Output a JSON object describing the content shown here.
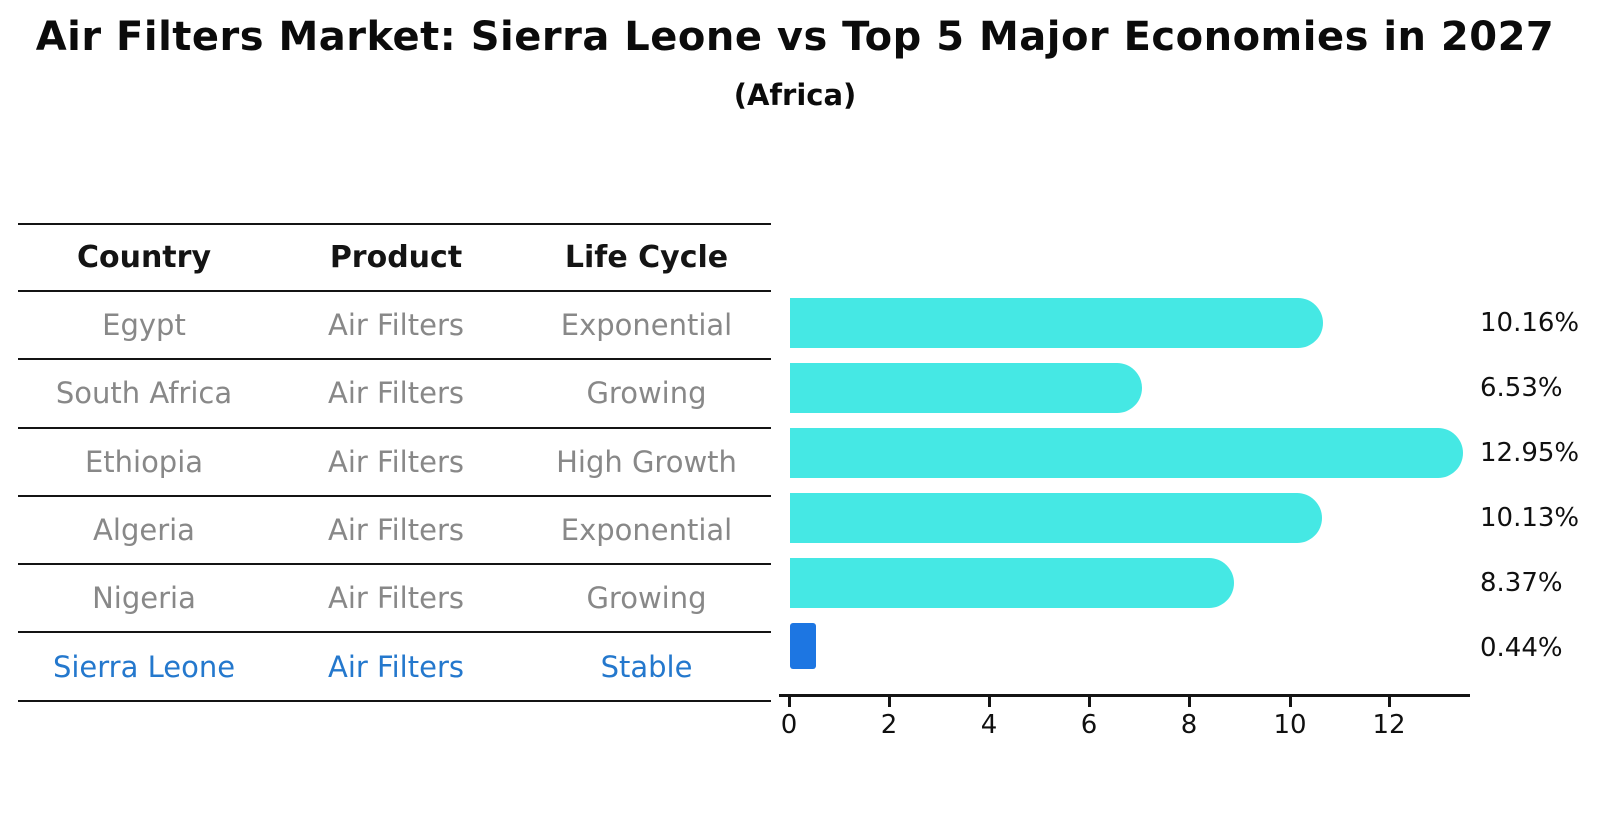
{
  "title": "Air Filters Market: Sierra Leone vs Top 5 Major Economies in 2027",
  "subtitle": "(Africa)",
  "table": {
    "headers": [
      "Country",
      "Product",
      "Life Cycle"
    ],
    "rows": [
      {
        "country": "Egypt",
        "product": "Air Filters",
        "life_cycle": "Exponential"
      },
      {
        "country": "South Africa",
        "product": "Air Filters",
        "life_cycle": "Growing"
      },
      {
        "country": "Ethiopia",
        "product": "Air Filters",
        "life_cycle": "High Growth"
      },
      {
        "country": "Algeria",
        "product": "Air Filters",
        "life_cycle": "Exponential"
      },
      {
        "country": "Nigeria",
        "product": "Air Filters",
        "life_cycle": "Growing"
      },
      {
        "country": "Sierra Leone",
        "product": "Air Filters",
        "life_cycle": "Stable"
      }
    ],
    "highlighted_country": "Sierra Leone"
  },
  "chart_data": {
    "type": "bar",
    "orientation": "horizontal",
    "categories": [
      "Egypt",
      "South Africa",
      "Ethiopia",
      "Algeria",
      "Nigeria",
      "Sierra Leone"
    ],
    "values": [
      10.16,
      6.53,
      12.95,
      10.13,
      8.37,
      0.44
    ],
    "value_labels": [
      "10.16%",
      "6.53%",
      "12.95%",
      "10.13%",
      "8.37%",
      "0.44%"
    ],
    "x_ticks": [
      "0",
      "2",
      "4",
      "6",
      "8",
      "10",
      "12"
    ],
    "xlim": [
      0,
      13.6
    ],
    "grid": false,
    "legend": "none",
    "bar_colors": [
      "#45e8e4",
      "#45e8e4",
      "#45e8e4",
      "#45e8e4",
      "#45e8e4",
      "#1d76e2"
    ],
    "series_color": "#45e8e4",
    "highlight_color": "#1d76e2",
    "highlight_text_color": "#2478cd",
    "row_text_color": "#888888",
    "axis_color": "#141414"
  }
}
